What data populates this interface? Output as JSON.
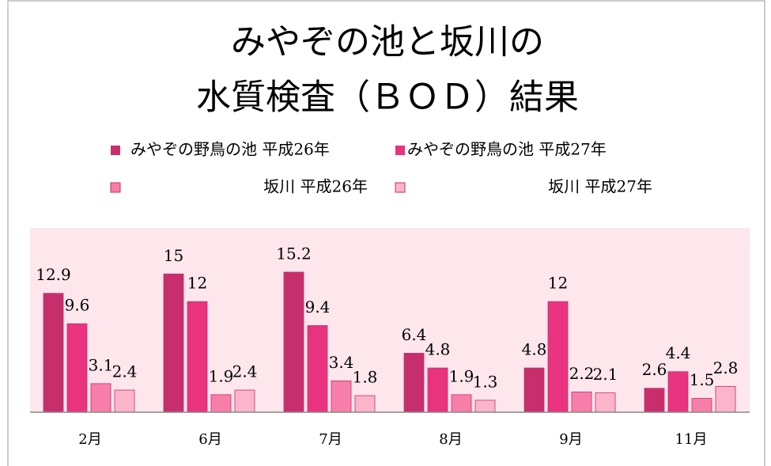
{
  "chart_data": {
    "type": "bar",
    "title": [
      "みやぞの池と坂川の",
      "水質検査（ＢＯＤ）結果"
    ],
    "categories": [
      "2月",
      "6月",
      "7月",
      "8月",
      "9月",
      "11月"
    ],
    "series": [
      {
        "name": "みやぞの野鳥の池 平成26年",
        "color": "#c72f6c",
        "values": [
          12.9,
          15,
          15.2,
          6.4,
          4.8,
          2.6
        ]
      },
      {
        "name": "みやぞの野鳥の池 平成27年",
        "color": "#e9337f",
        "values": [
          9.6,
          12,
          9.4,
          4.8,
          12,
          4.4
        ]
      },
      {
        "name": "坂川 平成26年",
        "color": "#f77ea8",
        "values": [
          3.1,
          1.9,
          3.4,
          1.9,
          2.2,
          1.5
        ]
      },
      {
        "name": "坂川 平成27年",
        "color": "#fbb5cb",
        "values": [
          2.4,
          2.4,
          1.8,
          1.3,
          2.1,
          2.8
        ]
      }
    ],
    "ylim": [
      0,
      20
    ]
  }
}
